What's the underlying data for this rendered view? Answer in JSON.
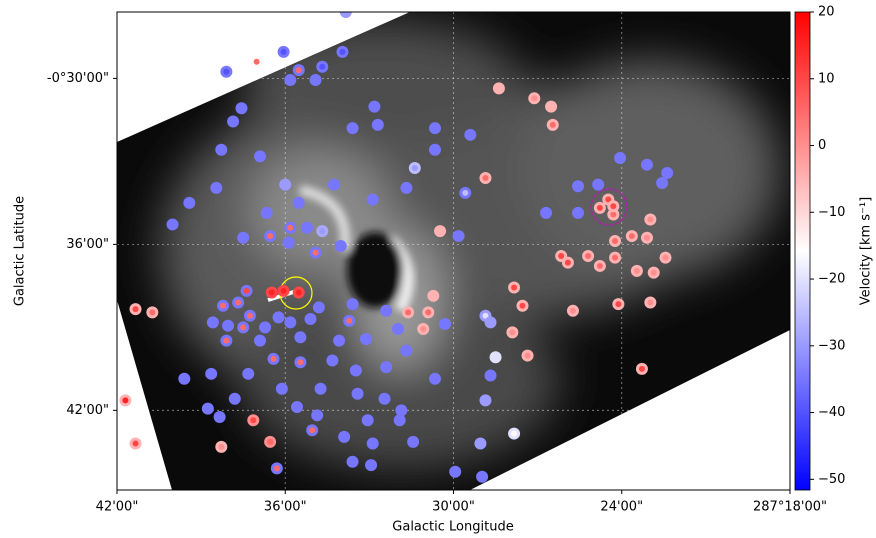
{
  "chart_data": {
    "type": "scatter",
    "x_label": "Galactic Longitude",
    "y_label": "Galactic Latitude",
    "xlim": [
      287.7,
      287.3
    ],
    "ylim": [
      -0.748,
      -0.46
    ],
    "xticks": [
      {
        "value": 287.7,
        "label": "42'00\""
      },
      {
        "value": 287.6,
        "label": "36'00\""
      },
      {
        "value": 287.5,
        "label": "30'00\""
      },
      {
        "value": 287.4,
        "label": "24'00\""
      },
      {
        "value": 287.3,
        "label": "287°18'00\""
      }
    ],
    "yticks": [
      {
        "value": -0.5,
        "label": "-0°30'00\""
      },
      {
        "value": -0.6,
        "label": "36'00\""
      },
      {
        "value": -0.7,
        "label": "42'00\""
      }
    ],
    "grid": true,
    "colorbar": {
      "label": "Velocity [km s⁻¹]",
      "lim": [
        -51.6,
        20
      ],
      "colors": [
        "#0000ff",
        "#ffffff",
        "#ff0000"
      ],
      "ticks": [
        20,
        10,
        0,
        {
          "value": -10,
          "label": "−10"
        },
        {
          "value": -20,
          "label": "−20"
        },
        {
          "value": -30,
          "label": "−30"
        },
        {
          "value": -40,
          "label": "−40"
        },
        {
          "value": -50,
          "label": "−50"
        }
      ]
    },
    "x": [
      287.635,
      287.617,
      287.601,
      287.592,
      287.578,
      287.566,
      287.597,
      287.582,
      287.564,
      287.473,
      287.452,
      287.442,
      287.441,
      287.547,
      287.626,
      287.631,
      287.56,
      287.545,
      287.511,
      287.49,
      287.615,
      287.638,
      287.511,
      287.523,
      287.528,
      287.6,
      287.571,
      287.548,
      287.493,
      287.481,
      287.641,
      287.657,
      287.611,
      287.592,
      287.667,
      287.625,
      287.609,
      287.597,
      287.587,
      287.578,
      287.567,
      287.582,
      287.598,
      287.508,
      287.497,
      287.445,
      287.426,
      287.414,
      287.405,
      287.426,
      287.401,
      287.385,
      287.376,
      287.373,
      287.383,
      287.394,
      287.385,
      287.404,
      287.374,
      287.391,
      287.381,
      287.436,
      287.432,
      287.42,
      287.413,
      287.404,
      287.464,
      287.459,
      287.429,
      287.402,
      287.383,
      287.512,
      287.689,
      287.679,
      287.637,
      287.628,
      287.621,
      287.643,
      287.634,
      287.625,
      287.612,
      287.604,
      287.597,
      287.585,
      287.58,
      287.56,
      287.562,
      287.54,
      287.527,
      287.515,
      287.518,
      287.505,
      287.481,
      287.478,
      287.465,
      287.635,
      287.615,
      287.591,
      287.568,
      287.552,
      287.533,
      287.528,
      287.475,
      287.456,
      287.388,
      287.66,
      287.644,
      287.622,
      287.607,
      287.591,
      287.572,
      287.558,
      287.54,
      287.511,
      287.478,
      287.579,
      287.602,
      287.63,
      287.646,
      287.593,
      287.557,
      287.531,
      287.541,
      287.481,
      287.619,
      287.639,
      287.581,
      287.551,
      287.532,
      287.584,
      287.565,
      287.548,
      287.524,
      287.638,
      287.484,
      287.464,
      287.56,
      287.549,
      287.605,
      287.499,
      287.483,
      287.695,
      287.689,
      287.609,
      287.408,
      287.405,
      287.413,
      287.601,
      287.592,
      287.608,
      287.623
    ],
    "y": [
      -0.496,
      -0.49,
      -0.484,
      -0.495,
      -0.493,
      -0.484,
      -0.501,
      -0.501,
      -0.46,
      -0.506,
      -0.512,
      -0.517,
      -0.528,
      -0.517,
      -0.518,
      -0.526,
      -0.53,
      -0.528,
      -0.53,
      -0.534,
      -0.547,
      -0.543,
      -0.543,
      -0.554,
      -0.566,
      -0.564,
      -0.564,
      -0.573,
      -0.569,
      -0.56,
      -0.566,
      -0.575,
      -0.581,
      -0.575,
      -0.588,
      -0.596,
      -0.595,
      -0.59,
      -0.59,
      -0.592,
      -0.601,
      -0.605,
      -0.599,
      -0.592,
      -0.595,
      -0.581,
      -0.565,
      -0.564,
      -0.582,
      -0.581,
      -0.548,
      -0.552,
      -0.563,
      -0.557,
      -0.585,
      -0.595,
      -0.596,
      -0.598,
      -0.608,
      -0.616,
      -0.617,
      -0.607,
      -0.611,
      -0.607,
      -0.613,
      -0.608,
      -0.626,
      -0.637,
      -0.64,
      -0.636,
      -0.635,
      -0.631,
      -0.639,
      -0.641,
      -0.637,
      -0.635,
      -0.643,
      -0.647,
      -0.649,
      -0.65,
      -0.65,
      -0.644,
      -0.647,
      -0.645,
      -0.638,
      -0.636,
      -0.646,
      -0.64,
      -0.641,
      -0.641,
      -0.651,
      -0.648,
      -0.643,
      -0.647,
      -0.653,
      -0.658,
      -0.658,
      -0.656,
      -0.658,
      -0.657,
      -0.651,
      -0.664,
      -0.668,
      -0.667,
      -0.675,
      -0.681,
      -0.678,
      -0.678,
      -0.669,
      -0.671,
      -0.67,
      -0.676,
      -0.674,
      -0.681,
      -0.679,
      -0.687,
      -0.687,
      -0.693,
      -0.699,
      -0.698,
      -0.69,
      -0.7,
      -0.693,
      -0.694,
      -0.706,
      -0.704,
      -0.703,
      -0.706,
      -0.706,
      -0.712,
      -0.716,
      -0.72,
      -0.719,
      -0.722,
      -0.72,
      -0.714,
      -0.731,
      -0.733,
      -0.735,
      -0.737,
      -0.74,
      -0.694,
      -0.72,
      -0.719,
      -0.573,
      -0.577,
      -0.578,
      -0.628,
      -0.629,
      -0.629,
      -0.628
    ],
    "ring_velocity": [
      -35,
      -15,
      -35,
      -35,
      -35,
      -35,
      -35,
      -35,
      -30,
      -5,
      -5,
      -5,
      -5,
      -35,
      -35,
      -35,
      -35,
      -35,
      -35,
      -35,
      -35,
      -35,
      -35,
      -25,
      -35,
      -30,
      -35,
      -35,
      -35,
      -5,
      -35,
      -35,
      -35,
      -35,
      -35,
      -35,
      -35,
      -35,
      -35,
      -28,
      -35,
      -35,
      -35,
      -5,
      -35,
      -35,
      -35,
      -35,
      -5,
      -35,
      -35,
      -35,
      -35,
      -35,
      -5,
      -5,
      -5,
      -5,
      -5,
      -5,
      -5,
      -5,
      -5,
      -5,
      -5,
      -5,
      -5,
      -5,
      -5,
      -5,
      -5,
      -5,
      -5,
      -5,
      -35,
      -35,
      -35,
      -35,
      -35,
      -35,
      -35,
      -35,
      -35,
      -35,
      -35,
      -35,
      -35,
      -35,
      -5,
      -5,
      -5,
      -35,
      -30,
      -30,
      -5,
      -35,
      -35,
      -35,
      -35,
      -35,
      -35,
      -35,
      -20,
      -5,
      -5,
      -35,
      -35,
      -35,
      -35,
      -35,
      -35,
      -35,
      -35,
      -35,
      -35,
      -35,
      -35,
      -35,
      -35,
      -35,
      -35,
      -35,
      -35,
      -30,
      0,
      -35,
      -35,
      -35,
      -35,
      -35,
      -35,
      -35,
      -35,
      -5,
      -30,
      -20,
      -35,
      -35,
      -35,
      -35,
      -35,
      -5,
      -5,
      0,
      -5,
      -5,
      -5,
      10,
      10,
      10,
      -35
    ],
    "core_velocity": [
      -40,
      5,
      -40,
      5,
      -40,
      -40,
      -35,
      -35,
      -30,
      -5,
      0,
      -5,
      5,
      -35,
      -35,
      -35,
      -35,
      -35,
      -35,
      -35,
      -35,
      -35,
      -35,
      -30,
      -35,
      -30,
      -35,
      -35,
      -25,
      5,
      -35,
      -35,
      -35,
      -35,
      -35,
      -35,
      5,
      5,
      -35,
      -30,
      -35,
      5,
      -35,
      -5,
      -35,
      -35,
      -35,
      -35,
      5,
      -35,
      -35,
      -35,
      -35,
      -35,
      0,
      5,
      0,
      5,
      0,
      0,
      0,
      10,
      10,
      5,
      5,
      5,
      10,
      10,
      0,
      10,
      0,
      -5,
      10,
      5,
      5,
      5,
      5,
      -35,
      -35,
      5,
      -35,
      -35,
      -35,
      -35,
      -35,
      -35,
      5,
      -35,
      5,
      5,
      0,
      -35,
      -20,
      -30,
      0,
      5,
      -35,
      -35,
      -35,
      -35,
      -35,
      -35,
      -20,
      0,
      10,
      -35,
      -35,
      -35,
      5,
      5,
      -35,
      -35,
      -35,
      -35,
      -35,
      -35,
      -35,
      -35,
      -35,
      -35,
      -35,
      -35,
      -35,
      -30,
      10,
      -35,
      -35,
      -35,
      -35,
      5,
      -35,
      -35,
      -35,
      0,
      -30,
      -15,
      -35,
      -35,
      5,
      -35,
      -35,
      15,
      10,
      5,
      10,
      10,
      10,
      15,
      15,
      15,
      10
    ]
  }
}
